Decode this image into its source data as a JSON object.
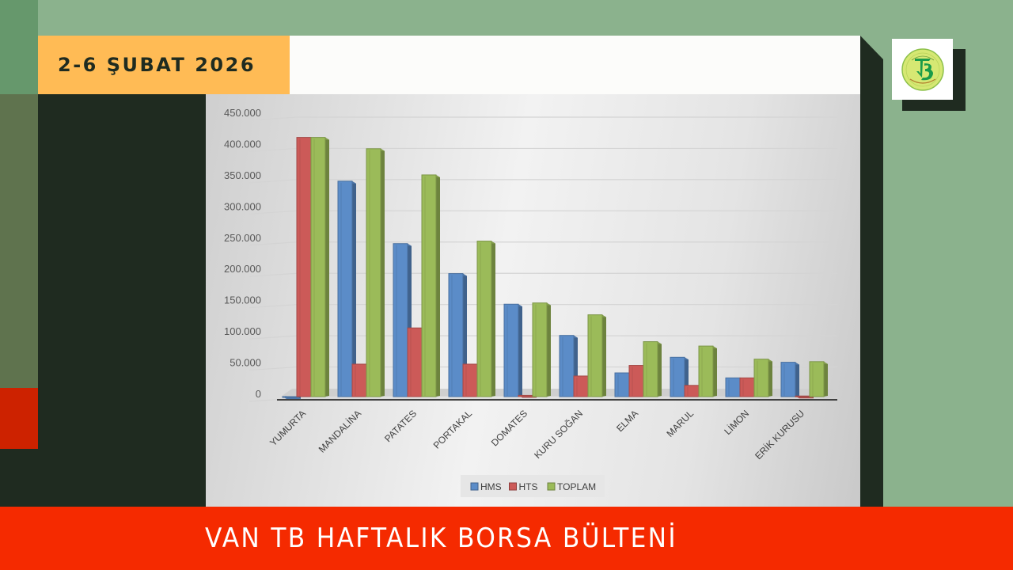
{
  "header": {
    "date_label": "2-6 ŞUBAT 2026"
  },
  "logo": {
    "icon": "van-tb-logo-icon",
    "colors": {
      "ring": "#d6e873",
      "mark": "#1a9b4a"
    }
  },
  "footer": {
    "title": "VAN TB HAFTALIK BORSA BÜLTENİ"
  },
  "colors": {
    "accent_orange": "#ffbb55",
    "banner_red": "#f52a00",
    "dark_green": "#1f2b20",
    "sage_green": "#8bb28d",
    "hms_blue": "#5b8cc8",
    "hts_red": "#cc5a58",
    "toplam_green": "#9bbb59"
  },
  "chart_data": {
    "type": "bar",
    "title": "",
    "xlabel": "",
    "ylabel": "",
    "ylim": [
      0,
      450000
    ],
    "yticks": [
      0,
      50000,
      100000,
      150000,
      200000,
      250000,
      300000,
      350000,
      400000,
      450000
    ],
    "ytick_labels": [
      "0",
      "50.000",
      "100.000",
      "150.000",
      "200.000",
      "250.000",
      "300.000",
      "350.000",
      "400.000",
      "450.000"
    ],
    "grid": true,
    "legend_position": "bottom",
    "style": "3d-clustered-column",
    "categories": [
      "YUMURTA",
      "MANDALİNA",
      "PATATES",
      "PORTAKAL",
      "DOMATES",
      "KURU SOĞAN",
      "ELMA",
      "MARUL",
      "LİMON",
      "ERİK KURUSU"
    ],
    "series": [
      {
        "name": "HMS",
        "color": "#5b8cc8",
        "values": [
          0,
          345000,
          245000,
          197000,
          148000,
          98000,
          38000,
          63000,
          30000,
          55000
        ]
      },
      {
        "name": "HTS",
        "color": "#cc5a58",
        "values": [
          415000,
          52000,
          110000,
          52000,
          2000,
          33000,
          50000,
          18000,
          30000,
          1000
        ]
      },
      {
        "name": "TOPLAM",
        "color": "#9bbb59",
        "values": [
          415000,
          397000,
          355000,
          249000,
          150000,
          131000,
          88000,
          81000,
          60000,
          56000
        ]
      }
    ]
  }
}
